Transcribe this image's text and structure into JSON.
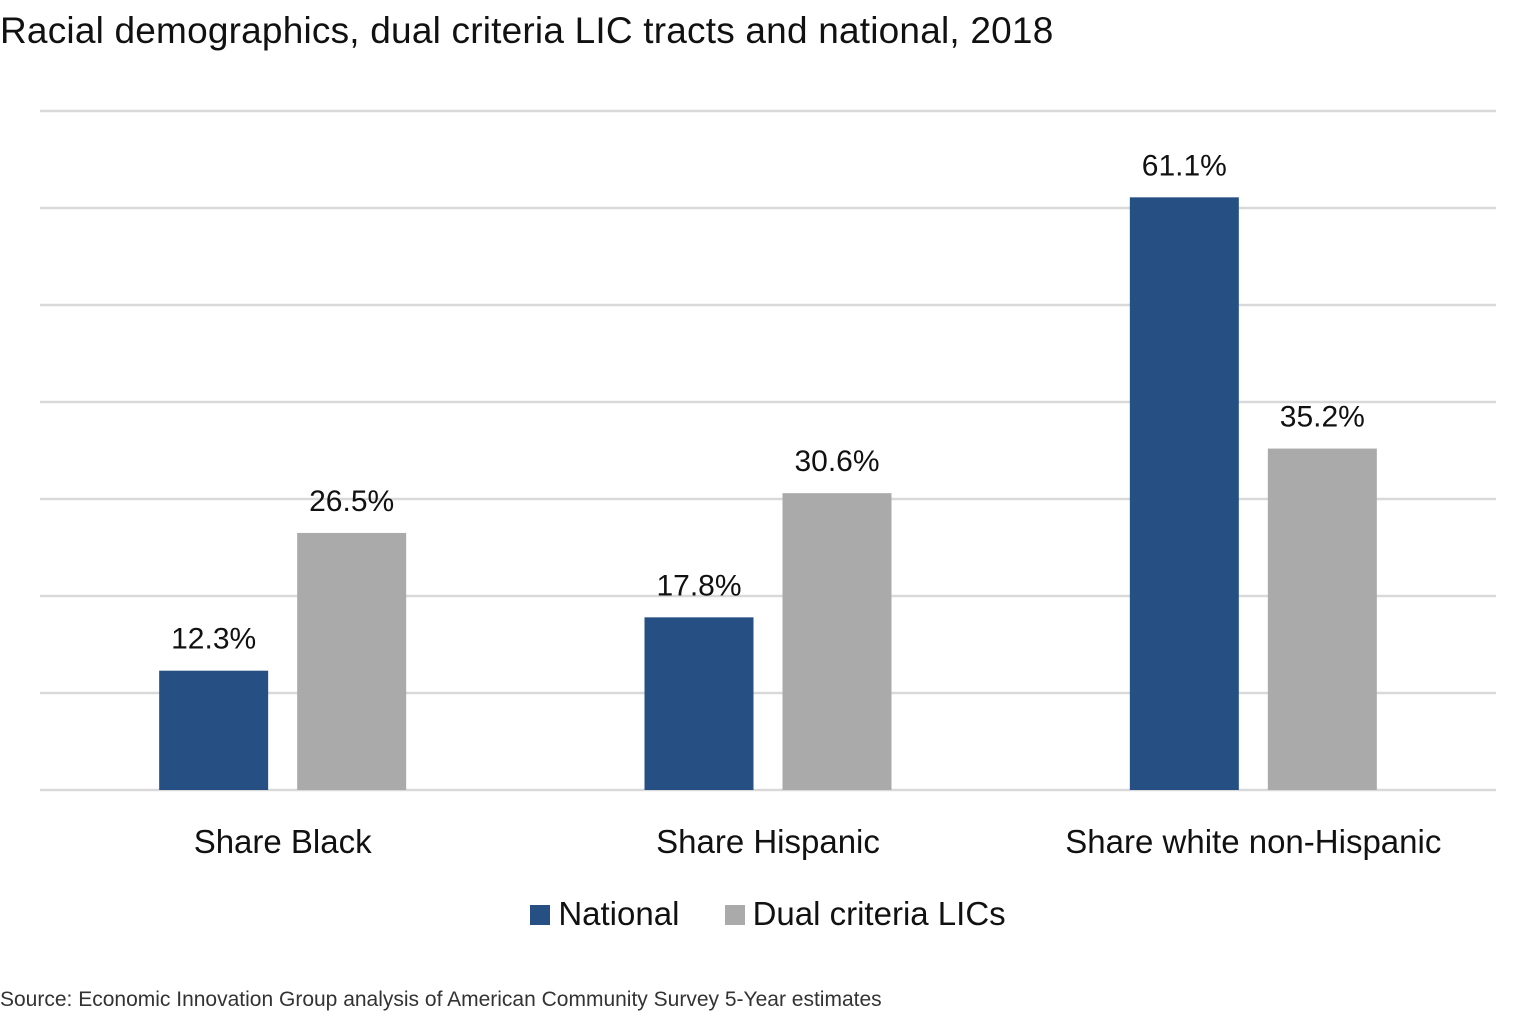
{
  "chart_data": {
    "type": "bar",
    "title": "Racial demographics, dual criteria LIC tracts and national, 2018",
    "categories": [
      "Share Black",
      "Share Hispanic",
      "Share white non-Hispanic"
    ],
    "series": [
      {
        "name": "National",
        "values": [
          12.3,
          17.8,
          61.1
        ],
        "labels": [
          "12.3%",
          "17.8%",
          "61.1%"
        ],
        "color": "#264f83"
      },
      {
        "name": "Dual criteria LICs",
        "values": [
          26.5,
          30.6,
          35.2
        ],
        "labels": [
          "26.5%",
          "30.6%",
          "35.2%"
        ],
        "color": "#aaaaaa"
      }
    ],
    "ylim": [
      0,
      70
    ],
    "y_gridlines": [
      0,
      10,
      20,
      30,
      40,
      50,
      60,
      70
    ],
    "grid": true,
    "y_tick_labels": false,
    "legend_position": "bottom",
    "source": "Source: Economic Innovation Group analysis of  American Community Survey 5-Year estimates"
  }
}
